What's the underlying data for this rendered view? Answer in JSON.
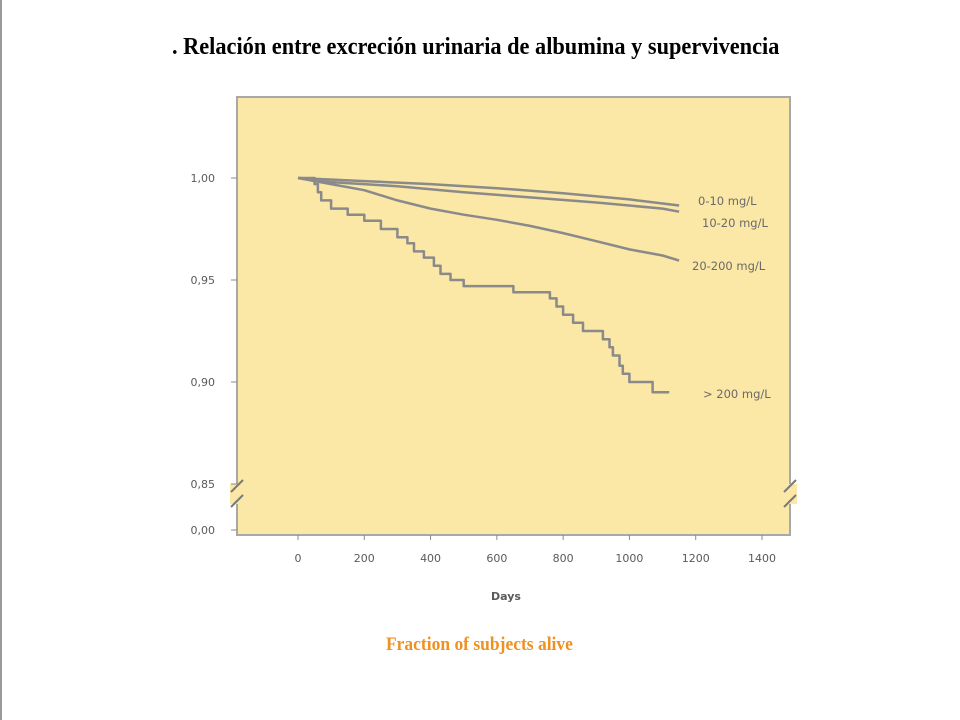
{
  "slide": {
    "title": ". Relación entre excreción urinaria de albumina y supervivencia",
    "caption": "Fraction of subjects alive"
  },
  "colors": {
    "plot_background": "#fbe7a6",
    "plot_border": "#a8a8a8",
    "series_line": "#8a8a8a",
    "caption": "#f0901e"
  },
  "chart_data": {
    "type": "line",
    "title": ". Relación entre excreción urinaria de albumina y supervivencia",
    "xlabel": "Days",
    "ylabel": "",
    "xlim": [
      -180,
      1450
    ],
    "x_ticks": [
      0,
      200,
      400,
      600,
      800,
      1000,
      1200,
      1400
    ],
    "x_tick_labels": [
      "0",
      "200",
      "400",
      "600",
      "800",
      "1000",
      "1200",
      "1400"
    ],
    "y_ticks": [
      1.0,
      0.95,
      0.9,
      0.85,
      0.0
    ],
    "y_tick_labels": [
      "1,00",
      "0,95",
      "0,90",
      "0,85",
      "0,00"
    ],
    "y_axis_break": "between 0,85 and 0,00",
    "ylim_upper_segment": [
      0.85,
      1.025
    ],
    "grid": false,
    "series": [
      {
        "name": "0-10 mg/L",
        "step": false,
        "points": [
          [
            0,
            1.0
          ],
          [
            200,
            0.9985
          ],
          [
            400,
            0.997
          ],
          [
            600,
            0.995
          ],
          [
            800,
            0.9925
          ],
          [
            1000,
            0.9895
          ],
          [
            1150,
            0.9865
          ]
        ]
      },
      {
        "name": "10-20 mg/L",
        "step": false,
        "points": [
          [
            0,
            1.0
          ],
          [
            100,
            0.998
          ],
          [
            300,
            0.996
          ],
          [
            500,
            0.993
          ],
          [
            700,
            0.9905
          ],
          [
            900,
            0.988
          ],
          [
            1100,
            0.985
          ],
          [
            1150,
            0.9835
          ]
        ]
      },
      {
        "name": "20-200 mg/L",
        "step": false,
        "points": [
          [
            0,
            1.0
          ],
          [
            100,
            0.997
          ],
          [
            200,
            0.994
          ],
          [
            300,
            0.989
          ],
          [
            400,
            0.985
          ],
          [
            500,
            0.982
          ],
          [
            600,
            0.9795
          ],
          [
            700,
            0.9765
          ],
          [
            800,
            0.973
          ],
          [
            900,
            0.969
          ],
          [
            1000,
            0.965
          ],
          [
            1100,
            0.962
          ],
          [
            1150,
            0.9595
          ]
        ]
      },
      {
        "name": "> 200 mg/L",
        "step": true,
        "points": [
          [
            0,
            1.0
          ],
          [
            40,
            1.0
          ],
          [
            50,
            0.997
          ],
          [
            60,
            0.993
          ],
          [
            70,
            0.989
          ],
          [
            100,
            0.985
          ],
          [
            150,
            0.982
          ],
          [
            200,
            0.979
          ],
          [
            250,
            0.975
          ],
          [
            300,
            0.971
          ],
          [
            330,
            0.968
          ],
          [
            350,
            0.964
          ],
          [
            380,
            0.961
          ],
          [
            410,
            0.957
          ],
          [
            430,
            0.953
          ],
          [
            460,
            0.95
          ],
          [
            500,
            0.947
          ],
          [
            650,
            0.944
          ],
          [
            760,
            0.941
          ],
          [
            780,
            0.937
          ],
          [
            800,
            0.933
          ],
          [
            830,
            0.929
          ],
          [
            860,
            0.925
          ],
          [
            920,
            0.921
          ],
          [
            940,
            0.917
          ],
          [
            950,
            0.913
          ],
          [
            970,
            0.908
          ],
          [
            980,
            0.904
          ],
          [
            1000,
            0.9
          ],
          [
            1070,
            0.895
          ],
          [
            1120,
            0.895
          ]
        ]
      }
    ]
  }
}
